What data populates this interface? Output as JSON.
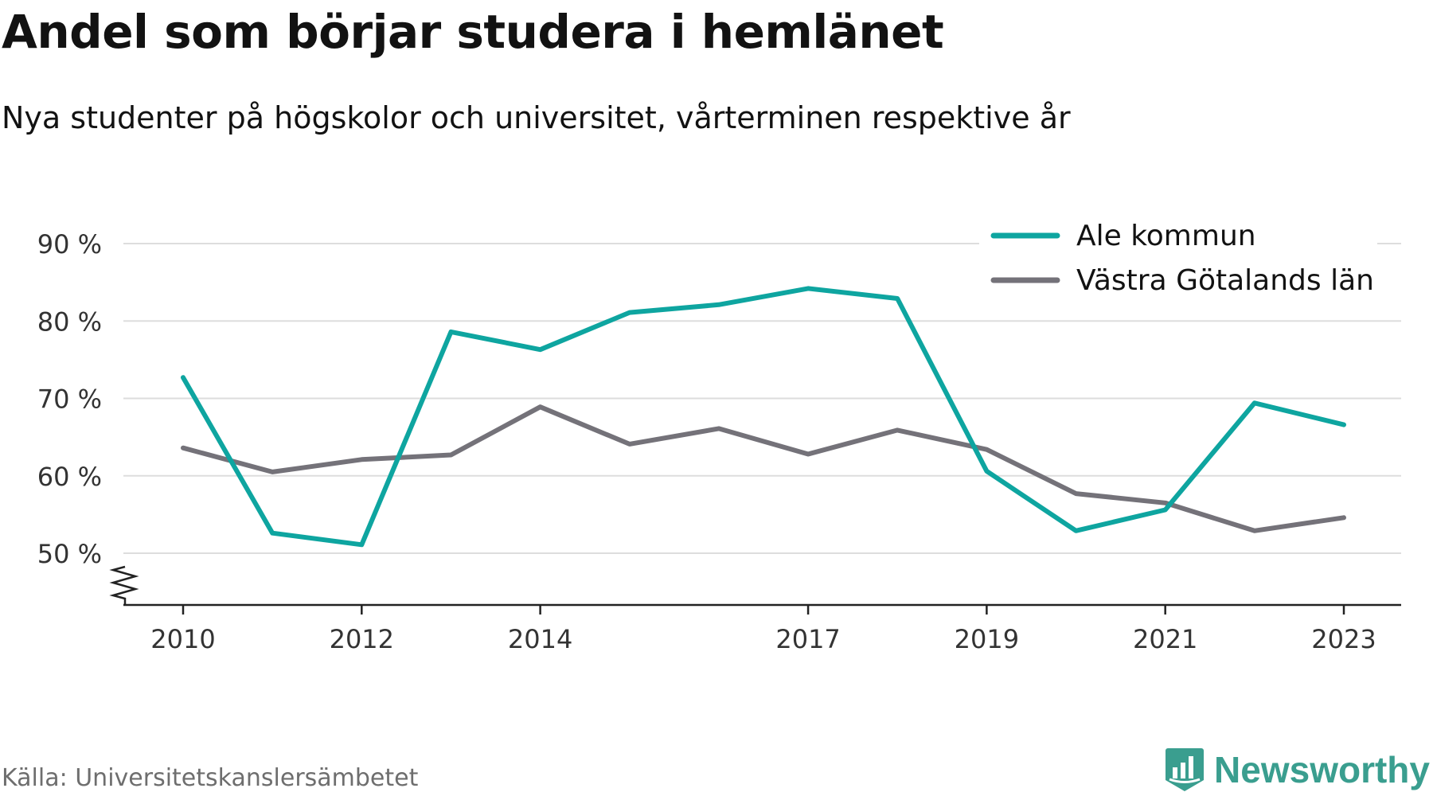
{
  "title": "Andel som börjar studera i hemlänet",
  "subtitle": "Nya studenter på högskolor och universitet, vårterminen respektive år",
  "source": "Källa: Universitetskanslersämbetet",
  "brand": "Newsworthy",
  "colors": {
    "ale": "#0ea5a0",
    "vg": "#747279",
    "grid": "#dddddd",
    "axis": "#222222",
    "brand": "#3a9e8f"
  },
  "chart_data": {
    "type": "line",
    "x": [
      2010,
      2011,
      2012,
      2013,
      2014,
      2015,
      2016,
      2017,
      2018,
      2019,
      2020,
      2021,
      2022,
      2023
    ],
    "x_ticks": [
      2010,
      2012,
      2014,
      2017,
      2019,
      2021,
      2023
    ],
    "y_ticks": [
      {
        "value": 50,
        "label": "50 %"
      },
      {
        "value": 60,
        "label": "60 %"
      },
      {
        "value": 70,
        "label": "70 %"
      },
      {
        "value": 80,
        "label": "80 %"
      },
      {
        "value": 90,
        "label": "90 %"
      }
    ],
    "ylim": [
      50,
      90
    ],
    "axis_break": true,
    "grid": true,
    "legend_position": "top-right",
    "series": [
      {
        "name": "Ale kommun",
        "color": "#0ea5a0",
        "values": [
          72.7,
          52.6,
          51.1,
          78.6,
          76.3,
          81.1,
          82.1,
          84.2,
          82.9,
          60.6,
          52.9,
          55.6,
          69.4,
          66.6
        ]
      },
      {
        "name": "Västra Götalands län",
        "color": "#747279",
        "values": [
          63.6,
          60.5,
          62.1,
          62.7,
          68.9,
          64.1,
          66.1,
          62.8,
          65.9,
          63.4,
          57.7,
          56.5,
          52.9,
          54.6
        ]
      }
    ]
  }
}
